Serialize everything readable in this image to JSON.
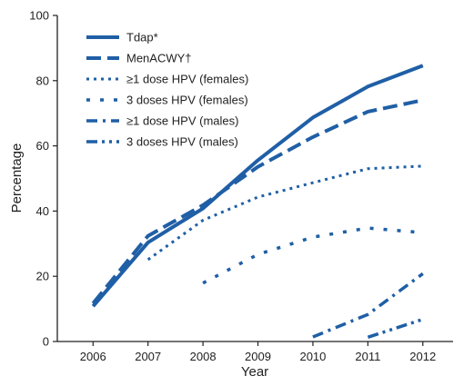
{
  "chart_data": {
    "type": "line",
    "xlabel": "Year",
    "ylabel": "Percentage",
    "xlim": [
      2005.35,
      2012.55
    ],
    "ylim": [
      0,
      100
    ],
    "x_ticks": [
      2006,
      2007,
      2008,
      2009,
      2010,
      2011,
      2012
    ],
    "y_ticks": [
      0,
      20,
      40,
      60,
      80,
      100
    ],
    "grid": false,
    "legend_position": "top-left",
    "color": "#1f5fa6",
    "series": [
      {
        "name": "Tdap*",
        "style": "solid",
        "x": [
          2006,
          2007,
          2008,
          2009,
          2010,
          2011,
          2012
        ],
        "values": [
          10.8,
          30.4,
          40.8,
          55.6,
          68.7,
          78.2,
          84.6
        ]
      },
      {
        "name": "MenACWY†",
        "style": "dash",
        "x": [
          2006,
          2007,
          2008,
          2009,
          2010,
          2011,
          2012
        ],
        "values": [
          11.7,
          32.4,
          41.8,
          53.6,
          62.7,
          70.5,
          74.0
        ]
      },
      {
        "name": "≥1 dose HPV (females)",
        "style": "dot",
        "x": [
          2007,
          2008,
          2009,
          2010,
          2011,
          2012
        ],
        "values": [
          25.1,
          37.2,
          44.3,
          48.7,
          53.0,
          53.8
        ]
      },
      {
        "name": "3 doses HPV (females)",
        "style": "dot-wide",
        "x": [
          2008,
          2009,
          2010,
          2011,
          2012
        ],
        "values": [
          17.9,
          26.7,
          32.0,
          34.8,
          33.4
        ]
      },
      {
        "name": "≥1 dose HPV (males)",
        "style": "dash-dot",
        "x": [
          2010,
          2011,
          2012
        ],
        "values": [
          1.4,
          8.3,
          20.8
        ]
      },
      {
        "name": "3 doses HPV (males)",
        "style": "dash-dot-dot",
        "x": [
          2011,
          2012
        ],
        "values": [
          1.3,
          6.8
        ]
      }
    ]
  }
}
